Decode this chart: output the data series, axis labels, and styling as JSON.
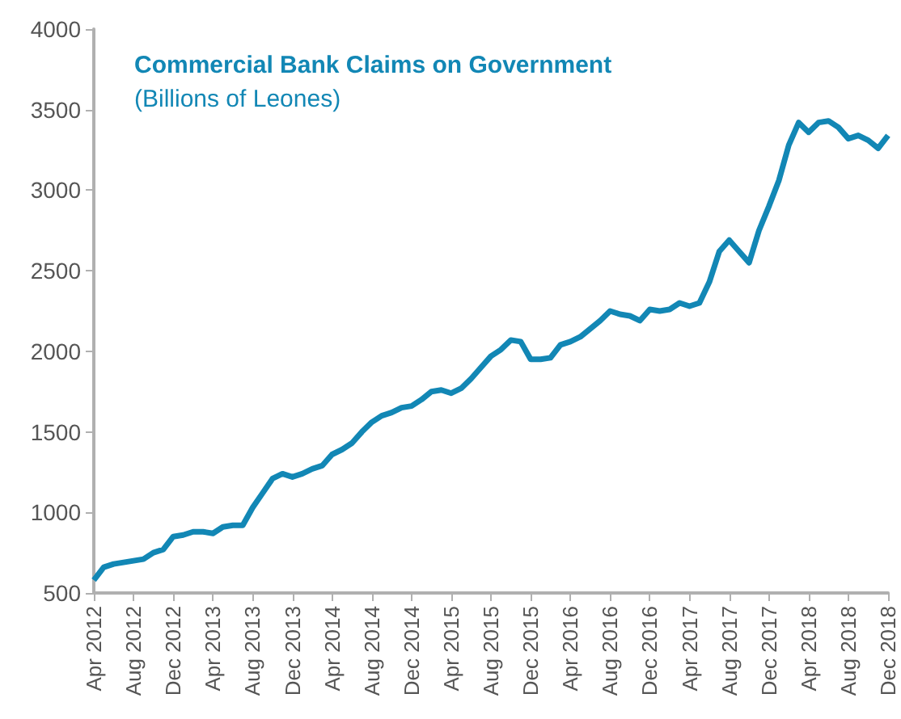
{
  "chart_data": {
    "type": "line",
    "title": "Commercial Bank Claims on Government",
    "subtitle": "(Billions of Leones)",
    "categories": [
      "Apr 2012",
      null,
      null,
      null,
      "Aug 2012",
      null,
      null,
      null,
      "Dec 2012",
      null,
      null,
      null,
      "Apr 2013",
      null,
      null,
      null,
      "Aug 2013",
      null,
      null,
      null,
      "Dec 2013",
      null,
      null,
      null,
      "Apr 2014",
      null,
      null,
      null,
      "Aug 2014",
      null,
      null,
      null,
      "Dec 2014",
      null,
      null,
      null,
      "Apr 2015",
      null,
      null,
      null,
      "Aug 2015",
      null,
      null,
      null,
      "Dec 2015",
      null,
      null,
      null,
      "Apr 2016",
      null,
      null,
      null,
      "Aug 2016",
      null,
      null,
      null,
      "Dec 2016",
      null,
      null,
      null,
      "Apr 2017",
      null,
      null,
      null,
      "Aug 2017",
      null,
      null,
      null,
      "Dec 2017",
      null,
      null,
      null,
      "Apr 2018",
      null,
      null,
      null,
      "Aug 2018",
      null,
      null,
      null,
      "Dec 2018"
    ],
    "series": [
      {
        "color": "#1287b5",
        "values": [
          580,
          660,
          680,
          690,
          700,
          710,
          750,
          770,
          850,
          860,
          880,
          880,
          870,
          910,
          920,
          920,
          1030,
          1120,
          1210,
          1240,
          1220,
          1240,
          1270,
          1290,
          1360,
          1390,
          1430,
          1500,
          1560,
          1600,
          1620,
          1650,
          1660,
          1700,
          1750,
          1760,
          1740,
          1770,
          1830,
          1900,
          1970,
          2010,
          2070,
          2060,
          1950,
          1950,
          1960,
          2040,
          2060,
          2090,
          2140,
          2190,
          2250,
          2230,
          2220,
          2190,
          2260,
          2250,
          2260,
          2300,
          2280,
          2300,
          2430,
          2620,
          2690,
          2620,
          2550,
          2750,
          2900,
          3060,
          3280,
          3420,
          3360,
          3420,
          3430,
          3390,
          3320,
          3340,
          3310,
          3260,
          3340
        ]
      }
    ],
    "ylim": [
      500,
      4000
    ],
    "yticks": [
      500,
      1000,
      1500,
      2000,
      2500,
      3000,
      3500,
      4000
    ],
    "grid": false,
    "marker": "none",
    "line_style": "solid"
  }
}
